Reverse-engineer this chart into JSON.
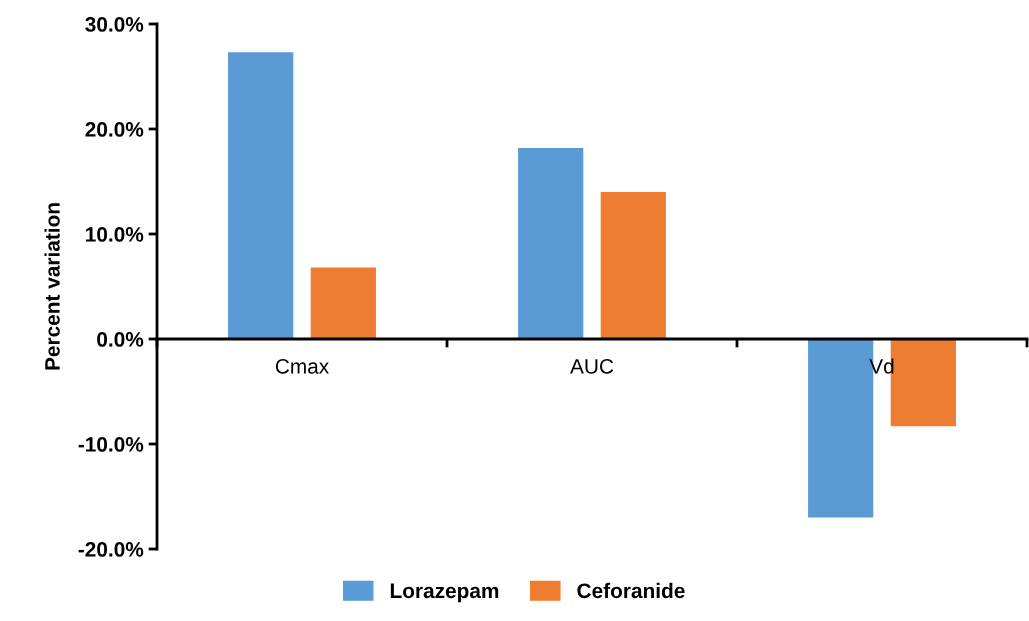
{
  "chart_data": {
    "type": "bar",
    "ylabel": "Percent variation",
    "categories": [
      "Cmax",
      "AUC",
      "Vd"
    ],
    "series": [
      {
        "name": "Lorazepam",
        "color": "#5b9bd5",
        "values": [
          27.3,
          18.2,
          -17.0
        ]
      },
      {
        "name": "Ceforanide",
        "color": "#ed7d31",
        "values": [
          6.8,
          14.0,
          -8.3
        ]
      }
    ],
    "ylim": [
      -20,
      30
    ],
    "yticks": [
      {
        "value": -20,
        "label": "-20.0%"
      },
      {
        "value": -10,
        "label": "-10.0%"
      },
      {
        "value": 0,
        "label": "0.0%"
      },
      {
        "value": 10,
        "label": "10.0%"
      },
      {
        "value": 20,
        "label": "20.0%"
      },
      {
        "value": 30,
        "label": "30.0%"
      }
    ],
    "grid": false,
    "legend": "bottom"
  }
}
